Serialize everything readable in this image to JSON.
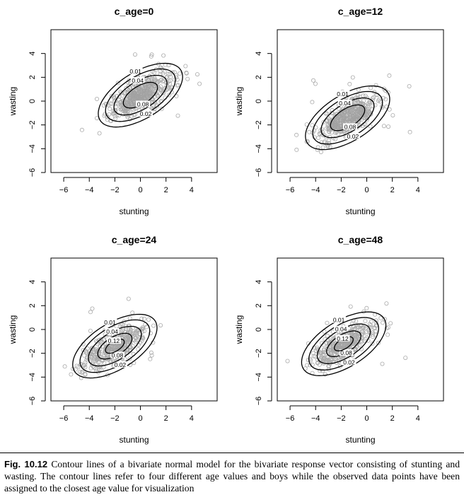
{
  "caption": {
    "label": "Fig. 10.12",
    "text": "Contour lines of a bivariate normal model for the bivariate response vector consisting of stunting and wasting. The contour lines refer to four different age values and boys while the observed data points have been assigned to the closest age value for visualization"
  },
  "chart_data": [
    {
      "type": "scatter",
      "title": "c_age=0",
      "xlabel": "stunting",
      "ylabel": "wasting",
      "xlim": [
        -7,
        6
      ],
      "ylim": [
        -6,
        6
      ],
      "xticks": [
        "−6",
        "−4",
        "−2",
        "0",
        "2",
        "4"
      ],
      "yticks": [
        "−6",
        "−4",
        "−2",
        "0",
        "2",
        "4"
      ],
      "grid": false,
      "contours": {
        "center": [
          0.0,
          0.5
        ],
        "levels": [
          "0.01",
          "0.02",
          "0.04",
          "0.08"
        ],
        "extra_levels": []
      },
      "point_color": "#aaaaaa"
    },
    {
      "type": "scatter",
      "title": "c_age=12",
      "xlabel": "stunting",
      "ylabel": "wasting",
      "xlim": [
        -7,
        6
      ],
      "ylim": [
        -6,
        6
      ],
      "xticks": [
        "−6",
        "−4",
        "−2",
        "0",
        "2",
        "4"
      ],
      "yticks": [
        "−6",
        "−4",
        "−2",
        "0",
        "2",
        "4"
      ],
      "grid": false,
      "contours": {
        "center": [
          -1.5,
          -1.4
        ],
        "levels": [
          "0.01",
          "0.02",
          "0.04",
          "0.08"
        ],
        "extra_levels": []
      },
      "point_color": "#aaaaaa"
    },
    {
      "type": "scatter",
      "title": "c_age=24",
      "xlabel": "stunting",
      "ylabel": "wasting",
      "xlim": [
        -7,
        6
      ],
      "ylim": [
        -6,
        6
      ],
      "xticks": [
        "−6",
        "−4",
        "−2",
        "0",
        "2",
        "4"
      ],
      "yticks": [
        "−6",
        "−4",
        "−2",
        "0",
        "2",
        "4"
      ],
      "grid": false,
      "contours": {
        "center": [
          -2.0,
          -1.4
        ],
        "levels": [
          "0.01",
          "0.02",
          "0.04",
          "0.08"
        ],
        "extra_levels": [
          "0.12"
        ]
      },
      "point_color": "#aaaaaa"
    },
    {
      "type": "scatter",
      "title": "c_age=48",
      "xlabel": "stunting",
      "ylabel": "wasting",
      "xlim": [
        -7,
        6
      ],
      "ylim": [
        -6,
        6
      ],
      "xticks": [
        "−6",
        "−4",
        "−2",
        "0",
        "2",
        "4"
      ],
      "yticks": [
        "−6",
        "−4",
        "−2",
        "0",
        "2",
        "4"
      ],
      "grid": false,
      "contours": {
        "center": [
          -1.8,
          -1.2
        ],
        "levels": [
          "0.01",
          "0.02",
          "0.04",
          "0.08"
        ],
        "extra_levels": [
          "0.12"
        ]
      },
      "point_color": "#aaaaaa"
    }
  ]
}
